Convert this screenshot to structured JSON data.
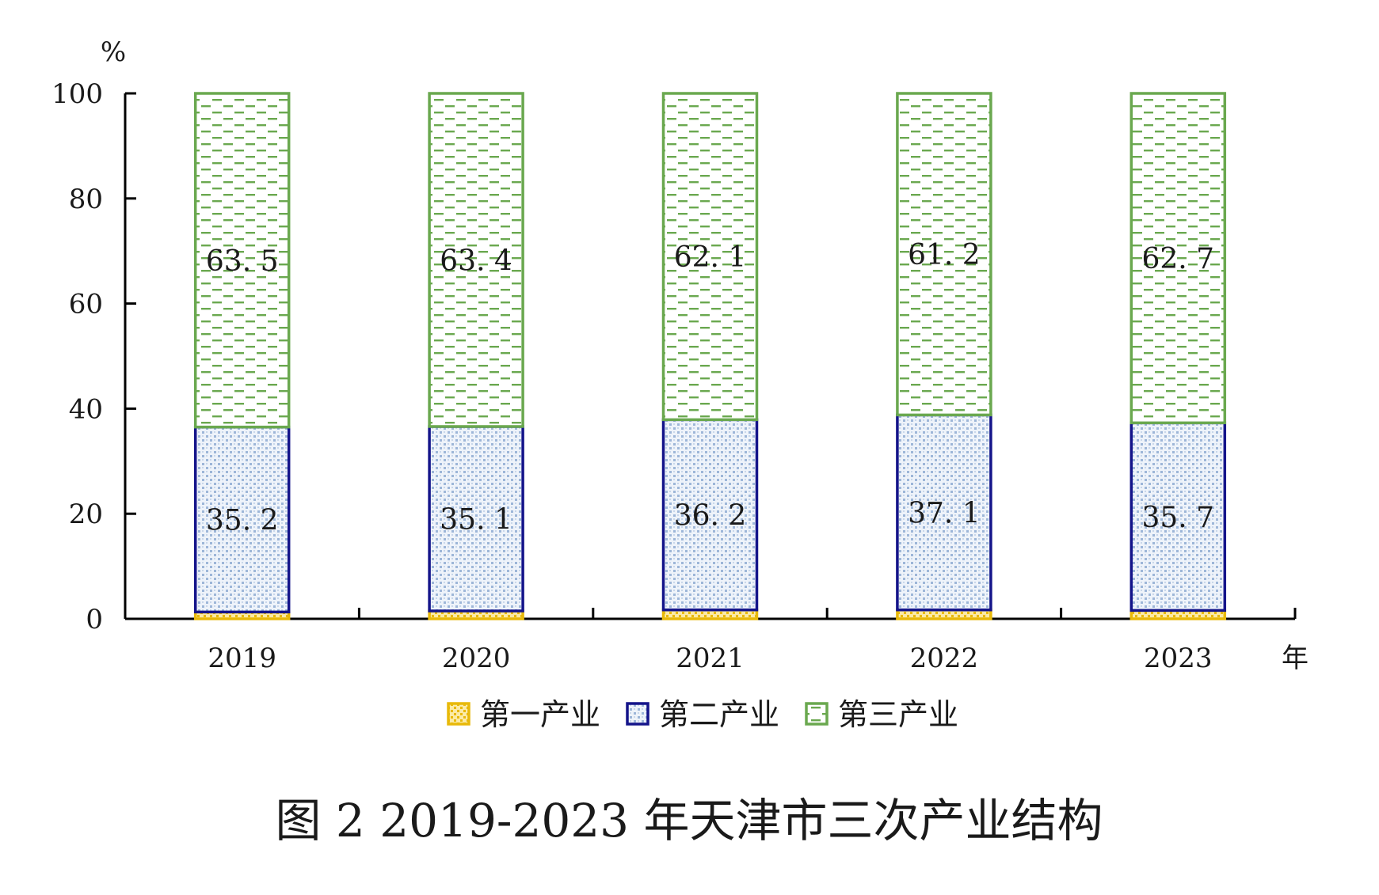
{
  "chart_data": {
    "type": "bar",
    "stacked": true,
    "title": "图 2 2019-2023 年天津市三次产业结构",
    "ylabel": "%",
    "xlabel": "年",
    "ylim": [
      0,
      100
    ],
    "yticks": [
      0,
      20,
      40,
      60,
      80,
      100
    ],
    "categories": [
      "2019",
      "2020",
      "2021",
      "2022",
      "2023"
    ],
    "series": [
      {
        "name": "第一产业",
        "values": [
          1.3,
          1.5,
          1.7,
          1.7,
          1.6
        ],
        "labels": [],
        "border": "#e8b90a",
        "fill": "#fbeaa6",
        "pattern": "dots"
      },
      {
        "name": "第二产业",
        "values": [
          35.2,
          35.1,
          36.2,
          37.1,
          35.7
        ],
        "labels": [
          "35. 2",
          "35. 1",
          "36. 2",
          "37. 1",
          "35. 7"
        ],
        "border": "#14148a",
        "fill": "#e6eef8",
        "pattern": "checker"
      },
      {
        "name": "第三产业",
        "values": [
          63.5,
          63.4,
          62.1,
          61.2,
          62.7
        ],
        "labels": [
          "63. 5",
          "63. 4",
          "62. 1",
          "61. 2",
          "62. 7"
        ],
        "border": "#6aa84f",
        "fill": "#ffffff",
        "pattern": "dashes"
      }
    ],
    "legend_position": "bottom"
  }
}
